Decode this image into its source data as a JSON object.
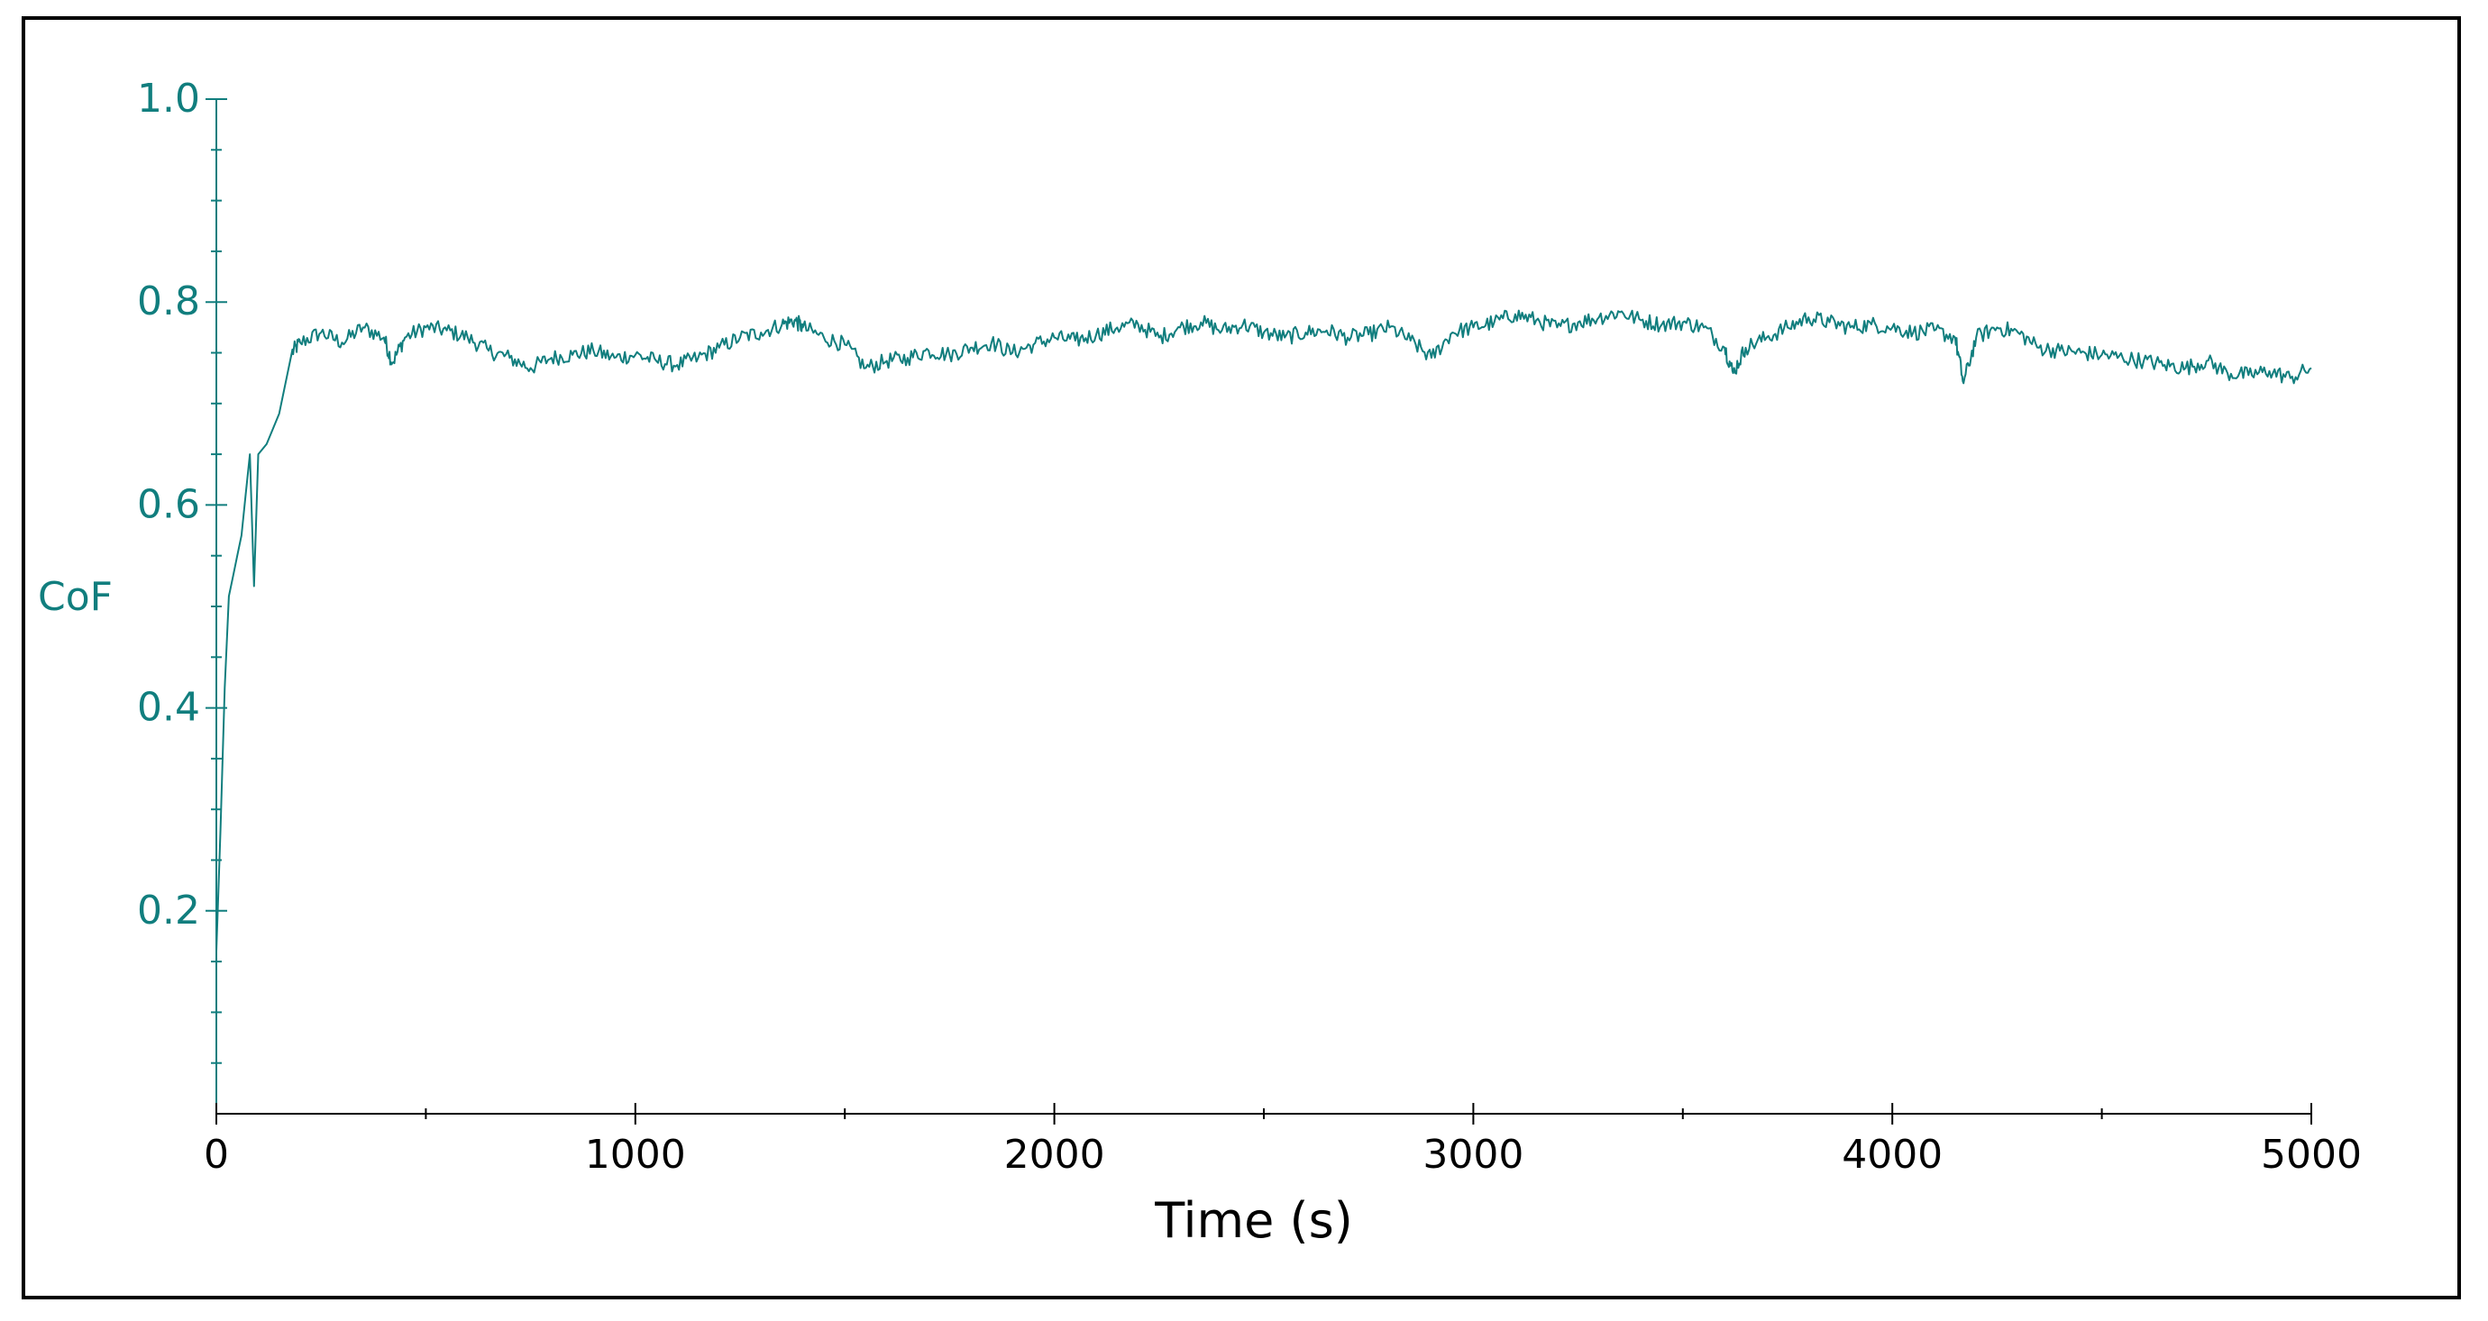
{
  "chart_data": {
    "type": "line",
    "title": "",
    "xlabel": "Time (s)",
    "ylabel": "CoF",
    "xlim": [
      0,
      5000
    ],
    "ylim": [
      0,
      1.0
    ],
    "x_ticks": [
      0,
      1000,
      2000,
      3000,
      4000,
      5000
    ],
    "x_tick_labels": [
      "0",
      "1000",
      "2000",
      "3000",
      "4000",
      "5000"
    ],
    "y_ticks": [
      0.2,
      0.4,
      0.6,
      0.8,
      1.0
    ],
    "y_tick_labels": [
      "0.2",
      "0.4",
      "0.6",
      "0.8",
      "1.0"
    ],
    "grid": false,
    "legend": "none",
    "series": [
      {
        "color": "#117e7e",
        "x": [
          0,
          10,
          20,
          30,
          40,
          50,
          60,
          70,
          80,
          90,
          100,
          120,
          150,
          180,
          200,
          250,
          300,
          350,
          400,
          420,
          450,
          500,
          550,
          600,
          650,
          700,
          750,
          800,
          850,
          900,
          950,
          1000,
          1050,
          1100,
          1150,
          1200,
          1250,
          1300,
          1350,
          1380,
          1400,
          1450,
          1500,
          1550,
          1600,
          1650,
          1700,
          1750,
          1800,
          1850,
          1900,
          1950,
          2000,
          2050,
          2100,
          2150,
          2200,
          2250,
          2300,
          2350,
          2400,
          2450,
          2500,
          2550,
          2600,
          2650,
          2700,
          2750,
          2800,
          2850,
          2900,
          2950,
          3000,
          3050,
          3100,
          3150,
          3200,
          3250,
          3300,
          3350,
          3400,
          3450,
          3500,
          3550,
          3600,
          3620,
          3650,
          3700,
          3750,
          3800,
          3850,
          3900,
          3950,
          4000,
          4050,
          4100,
          4150,
          4170,
          4200,
          4250,
          4300,
          4350,
          4400,
          4450,
          4500,
          4550,
          4600,
          4650,
          4700,
          4750,
          4800,
          4850,
          4900,
          4950,
          5000
        ],
        "values": [
          0.16,
          0.28,
          0.42,
          0.51,
          0.53,
          0.55,
          0.57,
          0.61,
          0.65,
          0.52,
          0.65,
          0.66,
          0.69,
          0.75,
          0.76,
          0.77,
          0.76,
          0.775,
          0.765,
          0.74,
          0.765,
          0.775,
          0.772,
          0.765,
          0.752,
          0.745,
          0.735,
          0.745,
          0.748,
          0.752,
          0.745,
          0.748,
          0.742,
          0.738,
          0.745,
          0.755,
          0.765,
          0.77,
          0.778,
          0.782,
          0.775,
          0.765,
          0.758,
          0.735,
          0.742,
          0.745,
          0.752,
          0.748,
          0.755,
          0.76,
          0.75,
          0.758,
          0.765,
          0.762,
          0.768,
          0.775,
          0.778,
          0.765,
          0.775,
          0.78,
          0.772,
          0.778,
          0.77,
          0.765,
          0.77,
          0.772,
          0.765,
          0.768,
          0.775,
          0.762,
          0.745,
          0.77,
          0.775,
          0.78,
          0.788,
          0.782,
          0.775,
          0.78,
          0.785,
          0.79,
          0.782,
          0.778,
          0.78,
          0.775,
          0.755,
          0.73,
          0.755,
          0.765,
          0.775,
          0.785,
          0.78,
          0.775,
          0.778,
          0.775,
          0.77,
          0.772,
          0.765,
          0.72,
          0.765,
          0.775,
          0.77,
          0.755,
          0.752,
          0.75,
          0.748,
          0.745,
          0.742,
          0.738,
          0.735,
          0.742,
          0.73,
          0.728,
          0.732,
          0.725,
          0.735
        ]
      }
    ]
  }
}
